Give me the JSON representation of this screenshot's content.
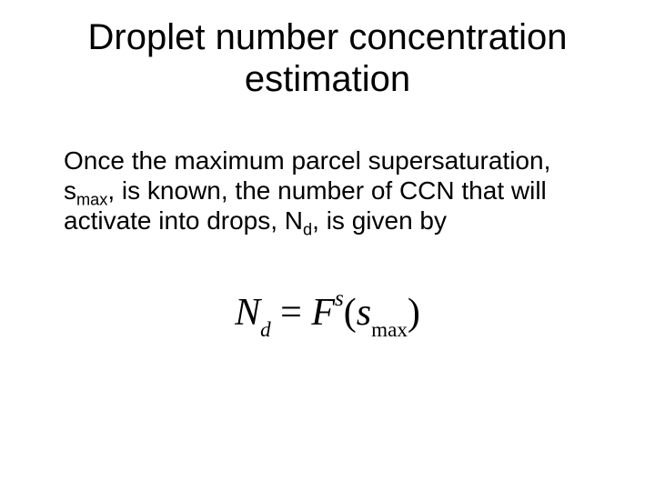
{
  "slide": {
    "background_color": "#ffffff",
    "text_color": "#000000",
    "title": {
      "line1": "Droplet number concentration",
      "line2": "estimation",
      "fontsize": 40,
      "font_family": "Arial",
      "font_weight": "normal",
      "align": "center"
    },
    "body": {
      "pre_smax": "Once the maximum parcel supersaturation, s",
      "smax_sub": "max",
      "mid": ", is known, the number of CCN that will activate into drops, N",
      "nd_sub": "d",
      "post": ", is given by",
      "fontsize": 28,
      "font_family": "Arial",
      "line_height": 1.18
    },
    "equation": {
      "N": "N",
      "d": "d",
      "eq": " = ",
      "F": "F",
      "s_sup": "s",
      "open": "(",
      "s_var": "s",
      "max_sub": "max",
      "close": ")",
      "fontsize": 42,
      "font_family": "Times New Roman",
      "font_style": "italic"
    }
  }
}
